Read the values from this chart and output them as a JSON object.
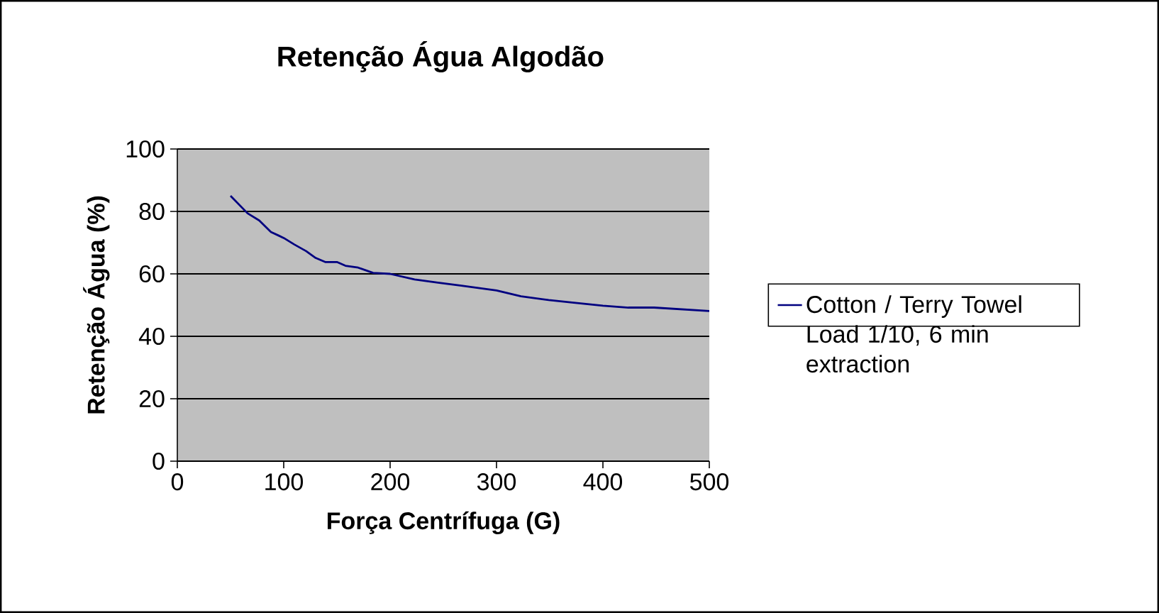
{
  "chart_data": {
    "type": "line",
    "title": "Retenção Água Algodão",
    "xlabel": "Força Centrífuga (G)",
    "ylabel": "Retenção Água (%)",
    "x": [
      50,
      66,
      77,
      88,
      95,
      100,
      110,
      121,
      130,
      139,
      150,
      158,
      170,
      184,
      200,
      223,
      245,
      267,
      300,
      323,
      349,
      371,
      400,
      424,
      448,
      500
    ],
    "series": [
      {
        "name": "Cotton / Terry Towel Load 1/10, 6 min extraction",
        "color": "#000080",
        "values": [
          85,
          79.4,
          77.1,
          73.4,
          72.3,
          71.5,
          69.4,
          67.3,
          65.1,
          63.8,
          63.8,
          62.6,
          62.0,
          60.3,
          60,
          58.2,
          57.2,
          56.2,
          54.7,
          52.8,
          51.6,
          50.8,
          49.8,
          49.2,
          49.2,
          48.1
        ]
      }
    ],
    "xlim": [
      0,
      500
    ],
    "ylim": [
      0,
      100
    ],
    "xticks": [
      0,
      100,
      200,
      300,
      400,
      500
    ],
    "yticks": [
      0,
      20,
      40,
      60,
      80,
      100
    ],
    "grid": "y",
    "legend": "right",
    "marker": "none",
    "line_style": "solid"
  }
}
